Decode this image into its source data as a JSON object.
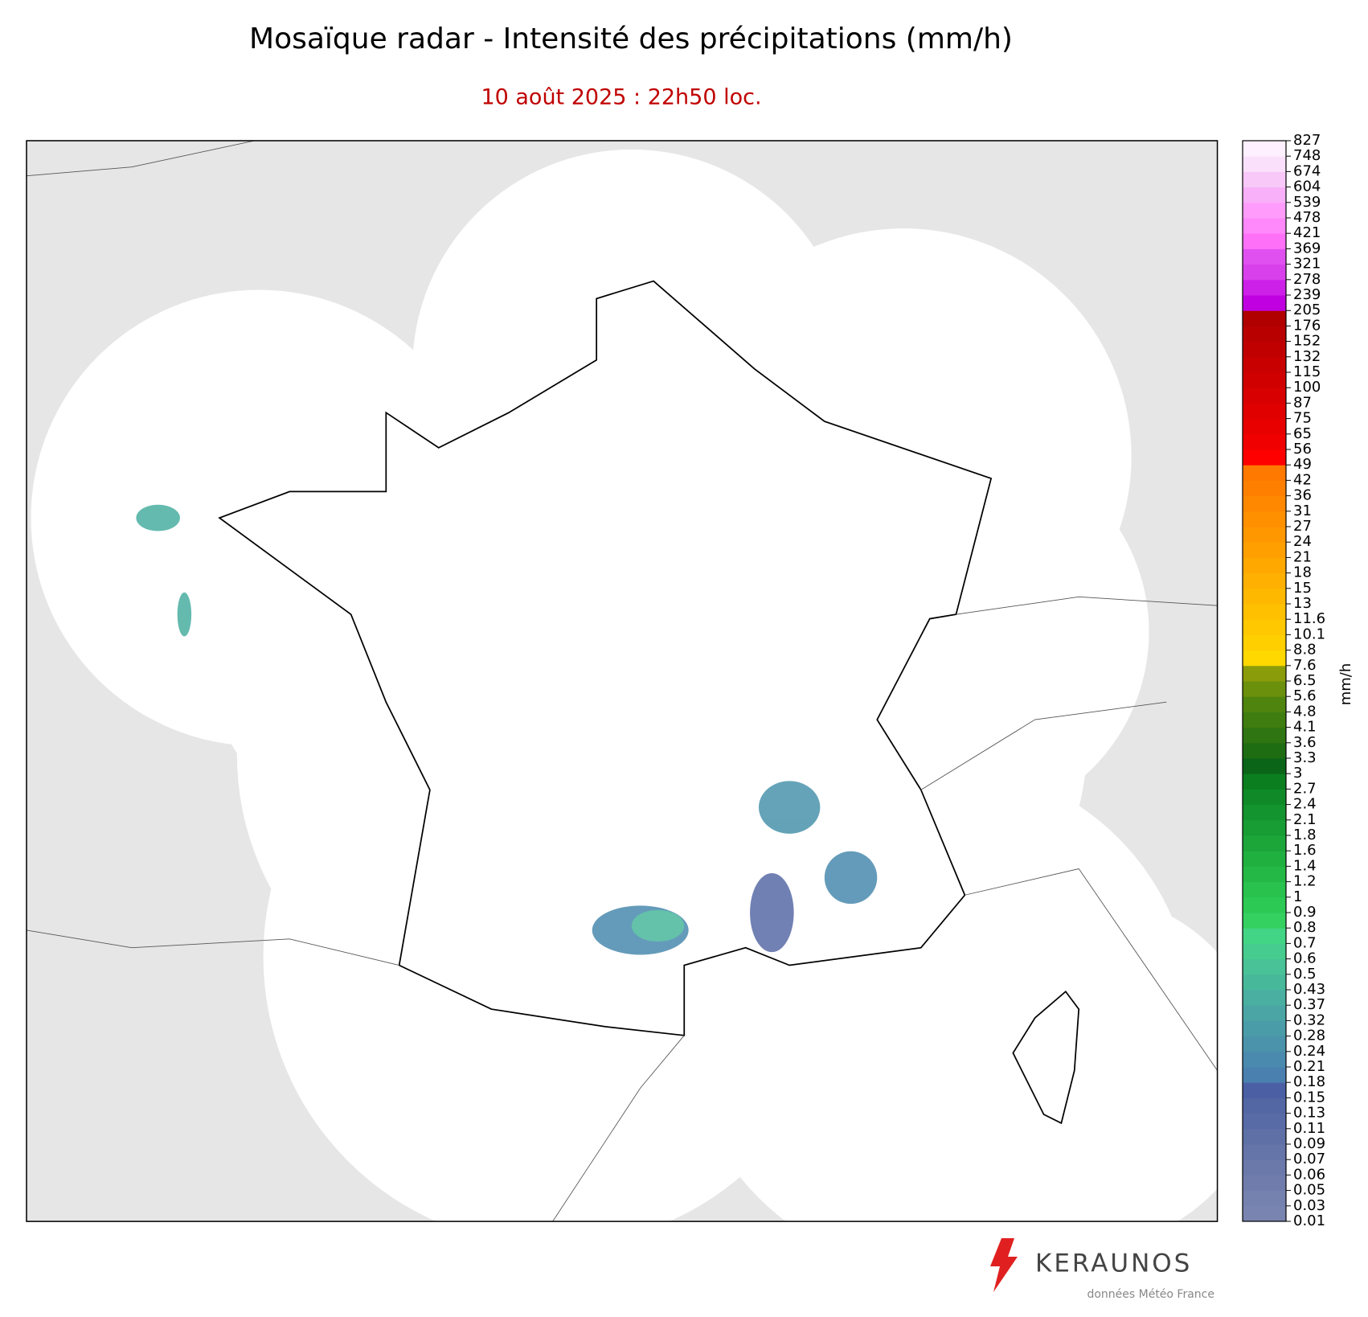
{
  "title": "Mosaïque radar - Intensité des précipitations (mm/h)",
  "subtitle": "10 août 2025 : 22h50 loc.",
  "colorbar": {
    "label": "mm/h",
    "ticks": [
      0.01,
      0.03,
      0.05,
      0.06,
      0.07,
      0.09,
      0.11,
      0.13,
      0.15,
      0.18,
      0.21,
      0.24,
      0.28,
      0.32,
      0.37,
      0.43,
      0.5,
      0.6,
      0.7,
      0.8,
      0.9,
      1,
      1.2,
      1.4,
      1.6,
      1.8,
      2.1,
      2.4,
      2.7,
      3,
      3.3,
      3.6,
      4.1,
      4.8,
      5.6,
      6.5,
      7.6,
      8.8,
      10.1,
      11.6,
      13,
      15,
      18,
      21,
      24,
      27,
      31,
      36,
      42,
      49,
      56,
      65,
      75,
      87,
      100,
      115,
      132,
      152,
      176,
      205,
      239,
      278,
      321,
      369,
      421,
      478,
      539,
      604,
      674,
      748,
      827
    ],
    "colors": [
      "#7a84b0",
      "#7581ae",
      "#707dac",
      "#6a78aa",
      "#6574a9",
      "#5f70a7",
      "#596ba6",
      "#5367a5",
      "#4b5fa5",
      "#4a80b0",
      "#4a8aae",
      "#4a93ab",
      "#4a9ca8",
      "#4ba5a5",
      "#4aaea0",
      "#48b89b",
      "#48c296",
      "#45cc8e",
      "#42d585",
      "#34d060",
      "#2cc954",
      "#28c24d",
      "#24b946",
      "#20b040",
      "#1ca63a",
      "#189d34",
      "#14942e",
      "#108a28",
      "#0b7f20",
      "#0a6518",
      "#1f6d13",
      "#2f7512",
      "#3f7d10",
      "#4f850e",
      "#6b900c",
      "#8a9c0a",
      "#ffd800",
      "#ffcf00",
      "#ffc800",
      "#ffc000",
      "#ffb800",
      "#ffb000",
      "#ffa800",
      "#ffa000",
      "#ff9800",
      "#ff9000",
      "#ff8800",
      "#ff8000",
      "#ff7800",
      "#ff0000",
      "#f00000",
      "#e80000",
      "#e00000",
      "#d80000",
      "#d00000",
      "#c80000",
      "#c00000",
      "#b80000",
      "#b00000",
      "#c000e0",
      "#cc20e8",
      "#d840ec",
      "#e050f0",
      "#ff70f8",
      "#ff88fa",
      "#ff9cfb",
      "#f8b0f8",
      "#f8c8f8",
      "#fae0fa",
      "#fff0ff"
    ]
  },
  "logo": {
    "name": "KERAUNOS",
    "credit": "données Météo France"
  }
}
